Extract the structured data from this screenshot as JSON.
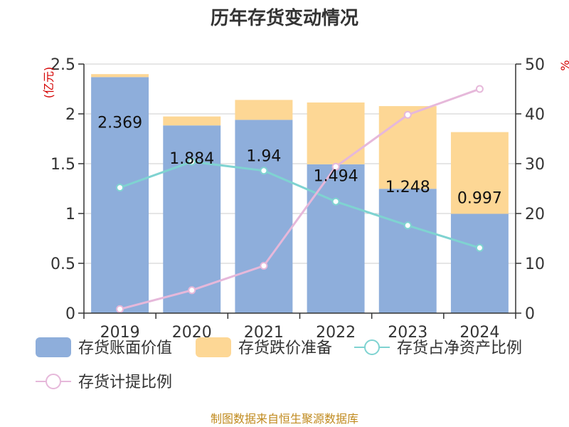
{
  "chart_data": {
    "title": "历年存货变动情况",
    "type": "bar",
    "categories": [
      "2019",
      "2020",
      "2021",
      "2022",
      "2023",
      "2024"
    ],
    "left_axis": {
      "unit_label": "(亿元)",
      "ticks": [
        "0",
        "0.5",
        "1",
        "1.5",
        "2",
        "2.5"
      ],
      "ylim": [
        0,
        2.5
      ]
    },
    "right_axis": {
      "unit_label": "%",
      "ticks": [
        "0",
        "10",
        "20",
        "30",
        "40",
        "50"
      ],
      "ylim": [
        0,
        50
      ]
    },
    "grid": true,
    "legend_position": "bottom",
    "series": [
      {
        "name": "存货账面价值",
        "kind": "bar",
        "stack": "inventory",
        "axis": "left",
        "color": "#8eaedb",
        "values": [
          2.369,
          1.884,
          1.94,
          1.494,
          1.248,
          0.997
        ],
        "data_labels": [
          "2.369",
          "1.884",
          "1.94",
          "1.494",
          "1.248",
          "0.997"
        ]
      },
      {
        "name": "存货跌价准备",
        "kind": "bar",
        "stack": "inventory",
        "axis": "left",
        "color": "#fdd795",
        "values": [
          0.03,
          0.09,
          0.2,
          0.62,
          0.83,
          0.82
        ]
      },
      {
        "name": "存货占净资产比例",
        "kind": "line",
        "axis": "right",
        "color": "#7fd3d1",
        "values": [
          25.2,
          30.4,
          28.6,
          22.4,
          17.6,
          13.1
        ]
      },
      {
        "name": "存货计提比例",
        "kind": "line",
        "axis": "right",
        "color": "#e6b8da",
        "values": [
          0.8,
          4.6,
          9.5,
          29.4,
          39.8,
          45.0
        ]
      }
    ],
    "source": "制图数据来自恒生聚源数据库"
  }
}
